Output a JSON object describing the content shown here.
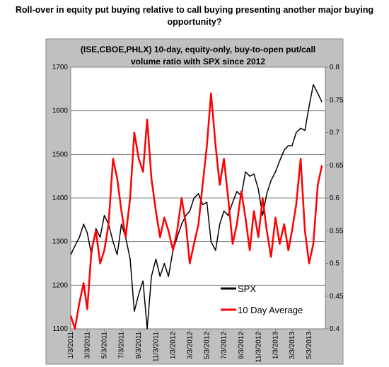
{
  "chart_data": {
    "type": "line",
    "title": "Roll-over in equity put buying relative to call buying presenting another major buying opportunity?",
    "subtitle": "(ISE,CBOE,PHLX) 10-day, equity-only, buy-to-open put/call volume ratio with SPX since 2012",
    "x": [
      "1/3/2011",
      "1/18/2011",
      "2/3/2011",
      "2/18/2011",
      "3/3/2011",
      "3/18/2011",
      "4/3/2011",
      "4/18/2011",
      "5/3/2011",
      "5/18/2011",
      "6/3/2011",
      "6/18/2011",
      "7/3/2011",
      "7/18/2011",
      "8/3/2011",
      "8/18/2011",
      "9/3/2011",
      "9/18/2011",
      "10/3/2011",
      "10/18/2011",
      "11/3/2011",
      "11/18/2011",
      "12/3/2011",
      "12/18/2011",
      "1/3/2012",
      "1/18/2012",
      "2/3/2012",
      "2/18/2012",
      "3/3/2012",
      "3/18/2012",
      "4/3/2012",
      "4/18/2012",
      "5/3/2012",
      "5/18/2012",
      "6/3/2012",
      "6/18/2012",
      "7/3/2012",
      "7/18/2012",
      "8/3/2012",
      "8/18/2012",
      "9/3/2012",
      "9/18/2012",
      "10/3/2012",
      "10/18/2012",
      "11/3/2012",
      "11/18/2012",
      "12/3/2012",
      "12/18/2012",
      "1/3/2013",
      "1/18/2013",
      "2/3/2013",
      "2/18/2013",
      "3/3/2013",
      "3/18/2013",
      "4/3/2013",
      "4/18/2013",
      "5/3/2013",
      "5/18/2013",
      "6/3/2013",
      "6/18/2013"
    ],
    "series": [
      {
        "name": "SPX",
        "color": "#000000",
        "axis": "y",
        "values": [
          1270,
          1290,
          1310,
          1340,
          1320,
          1270,
          1330,
          1310,
          1360,
          1340,
          1300,
          1270,
          1340,
          1310,
          1260,
          1140,
          1180,
          1210,
          1100,
          1220,
          1260,
          1220,
          1250,
          1220,
          1280,
          1310,
          1340,
          1360,
          1370,
          1400,
          1410,
          1385,
          1390,
          1300,
          1280,
          1340,
          1370,
          1360,
          1390,
          1415,
          1405,
          1460,
          1450,
          1455,
          1420,
          1360,
          1410,
          1440,
          1460,
          1485,
          1510,
          1520,
          1520,
          1550,
          1560,
          1555,
          1610,
          1660,
          1640,
          1620
        ]
      },
      {
        "name": "10 Day Average",
        "color": "#ff0000",
        "axis": "y2",
        "values": [
          0.42,
          0.4,
          0.44,
          0.47,
          0.43,
          0.52,
          0.55,
          0.5,
          0.52,
          0.56,
          0.66,
          0.63,
          0.58,
          0.54,
          0.6,
          0.7,
          0.66,
          0.64,
          0.72,
          0.63,
          0.58,
          0.54,
          0.57,
          0.55,
          0.52,
          0.55,
          0.6,
          0.56,
          0.5,
          0.53,
          0.56,
          0.62,
          0.68,
          0.76,
          0.68,
          0.62,
          0.66,
          0.6,
          0.53,
          0.56,
          0.61,
          0.57,
          0.52,
          0.58,
          0.54,
          0.6,
          0.55,
          0.51,
          0.57,
          0.53,
          0.56,
          0.52,
          0.55,
          0.59,
          0.66,
          0.55,
          0.5,
          0.53,
          0.62,
          0.65
        ]
      }
    ],
    "xlim": [
      "1/3/2011",
      "6/30/2013"
    ],
    "xticks": [
      "1/3/2011",
      "3/3/2011",
      "5/3/2011",
      "7/3/2011",
      "9/3/2011",
      "11/3/2011",
      "1/3/2012",
      "3/3/2012",
      "5/3/2012",
      "7/3/2012",
      "9/3/2012",
      "11/3/2012",
      "1/3/2013",
      "3/3/2013",
      "5/3/2013"
    ],
    "ylim": [
      1100,
      1700
    ],
    "yticks": [
      1100,
      1200,
      1300,
      1400,
      1500,
      1600,
      1700
    ],
    "y2lim": [
      0.4,
      0.8
    ],
    "y2ticks": [
      0.4,
      0.45,
      0.5,
      0.55,
      0.6,
      0.65,
      0.7,
      0.75,
      0.8
    ],
    "grid": true,
    "legend": "lower right"
  }
}
